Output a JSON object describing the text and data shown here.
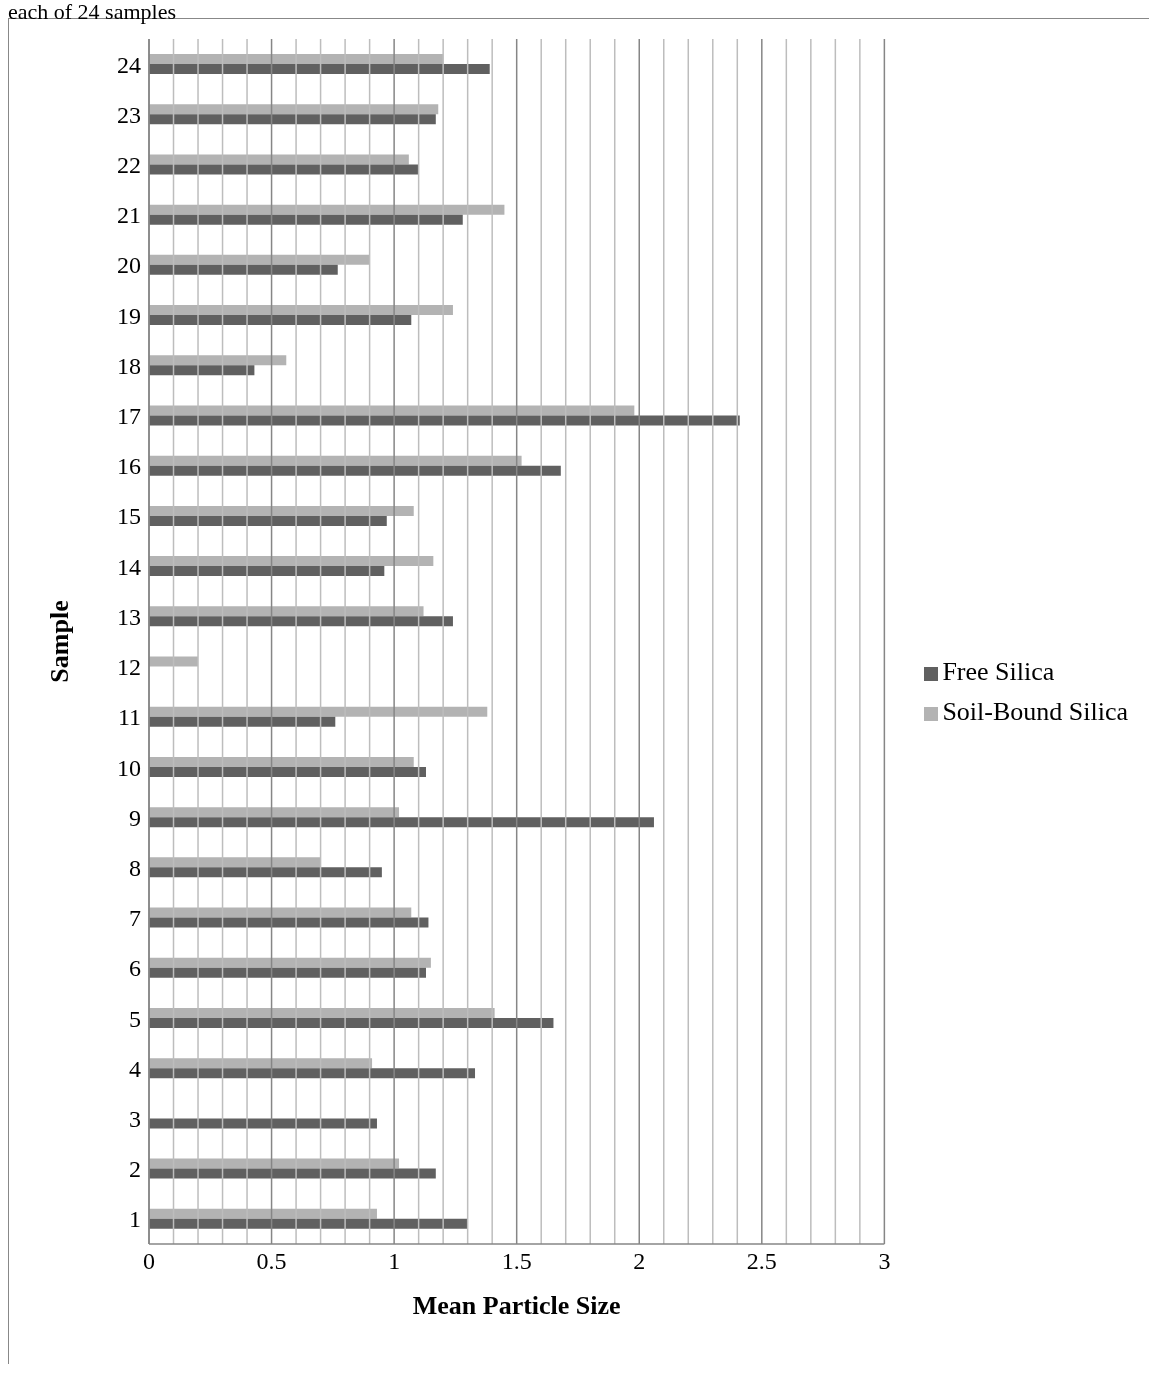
{
  "chart_data": {
    "type": "bar",
    "orientation": "horizontal",
    "xlabel": "Mean Particle Size",
    "ylabel": "Sample",
    "annotations": [
      "each of 24 samples"
    ],
    "categories": [
      "24",
      "23",
      "22",
      "21",
      "20",
      "19",
      "18",
      "17",
      "16",
      "15",
      "14",
      "13",
      "12",
      "11",
      "10",
      "9",
      "8",
      "7",
      "6",
      "5",
      "4",
      "3",
      "2",
      "1"
    ],
    "series": [
      {
        "name": "Soil-Bound Silica",
        "color": "#b3b3b3",
        "values": [
          1.2,
          1.18,
          1.06,
          1.45,
          0.9,
          1.24,
          0.56,
          1.98,
          1.52,
          1.08,
          1.16,
          1.12,
          0.2,
          1.38,
          1.08,
          1.02,
          0.7,
          1.07,
          1.15,
          1.41,
          0.91,
          null,
          1.02,
          0.93
        ]
      },
      {
        "name": "Free Silica",
        "color": "#606060",
        "values": [
          1.39,
          1.17,
          1.1,
          1.28,
          0.77,
          1.07,
          0.43,
          2.41,
          1.68,
          0.97,
          0.96,
          1.24,
          null,
          0.76,
          1.13,
          2.06,
          0.95,
          1.14,
          1.13,
          1.65,
          1.33,
          0.93,
          1.17,
          1.3
        ]
      }
    ],
    "xlim": [
      0,
      3
    ],
    "xticks": [
      0,
      {
        "value": 0.1,
        "label": null
      },
      {
        "value": 0.2,
        "label": null
      },
      {
        "value": 0.3,
        "label": null
      },
      {
        "value": 0.4,
        "label": null
      },
      {
        "value": 0.5,
        "label": "0.5"
      },
      {
        "value": 0.6,
        "label": null
      },
      {
        "value": 0.7,
        "label": null
      },
      {
        "value": 0.8,
        "label": null
      },
      {
        "value": 0.9,
        "label": null
      },
      1,
      {
        "value": 1.1,
        "label": null
      },
      {
        "value": 1.2,
        "label": null
      },
      {
        "value": 1.3,
        "label": null
      },
      {
        "value": 1.4,
        "label": null
      },
      {
        "value": 1.5,
        "label": "1.5"
      },
      {
        "value": 1.6,
        "label": null
      },
      {
        "value": 1.7,
        "label": null
      },
      {
        "value": 1.8,
        "label": null
      },
      {
        "value": 1.9,
        "label": null
      },
      2,
      {
        "value": 2.1,
        "label": null
      },
      {
        "value": 2.2,
        "label": null
      },
      {
        "value": 2.3,
        "label": null
      },
      {
        "value": 2.4,
        "label": null
      },
      {
        "value": 2.5,
        "label": "2.5"
      },
      {
        "value": 2.6,
        "label": null
      },
      {
        "value": 2.7,
        "label": null
      },
      {
        "value": 2.8,
        "label": null
      },
      {
        "value": 2.9,
        "label": null
      },
      3
    ],
    "grid": "x",
    "legend": "right"
  }
}
